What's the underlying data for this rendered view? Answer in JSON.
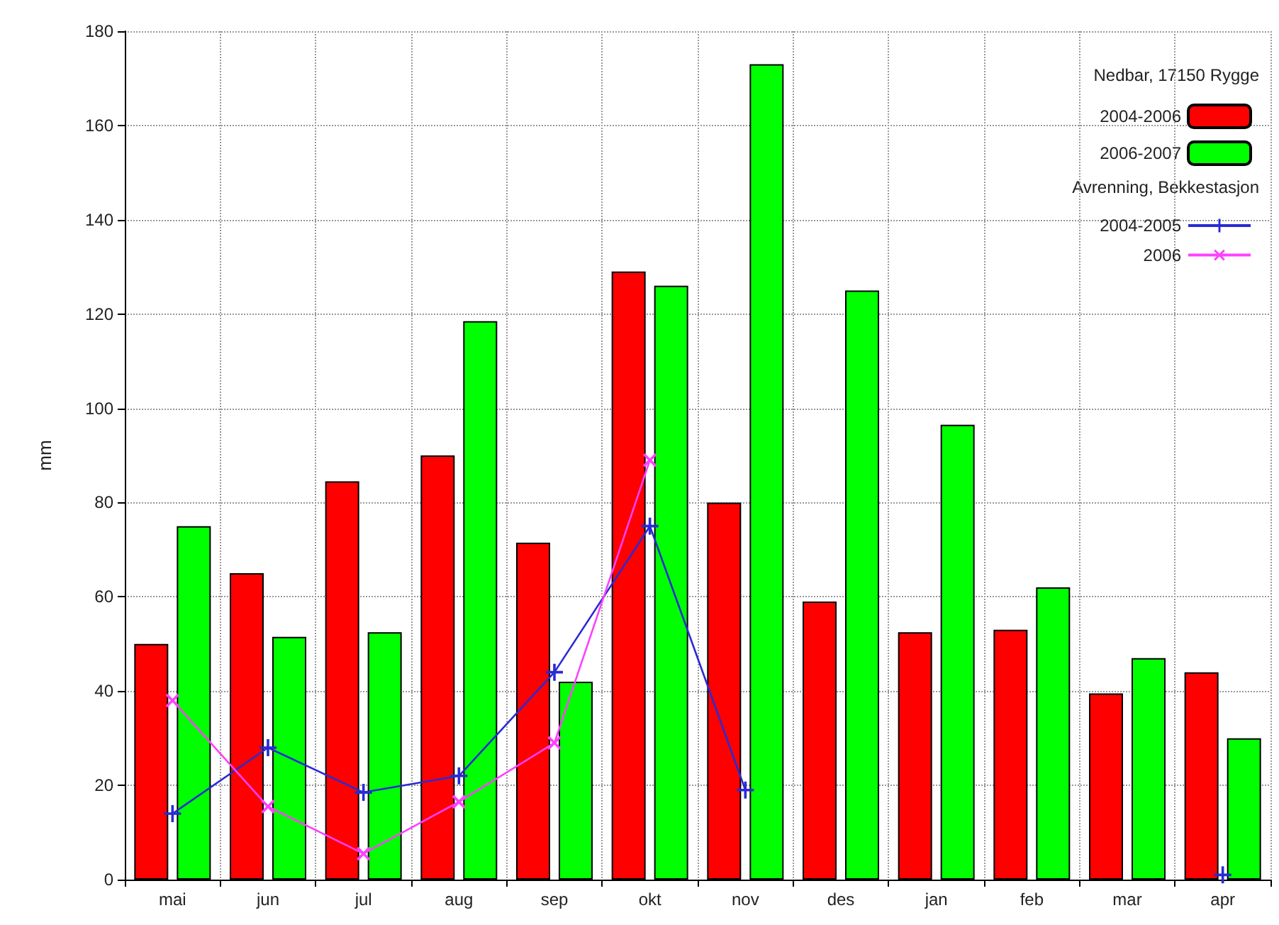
{
  "chart_data": {
    "type": "bar",
    "ylabel": "mm",
    "legend_title": "Nedbar, 17150 Rygge",
    "annotations": [
      "Avrenning, Bekkestasjon"
    ],
    "categories": [
      "mai",
      "jun",
      "jul",
      "aug",
      "sep",
      "okt",
      "nov",
      "des",
      "jan",
      "feb",
      "mar",
      "apr"
    ],
    "series": [
      {
        "name": "2004-2006",
        "color": "#ff0000",
        "values": [
          50,
          65,
          84.5,
          90,
          71.5,
          129,
          80,
          59,
          52.5,
          53,
          39.5,
          44
        ]
      },
      {
        "name": "2006-2007",
        "color": "#00ff00",
        "values": [
          75,
          51.5,
          52.5,
          118.5,
          42,
          126,
          173,
          125,
          96.5,
          62,
          47,
          30
        ]
      },
      {
        "name": "2004-2005",
        "type": "line",
        "color": "#2a2ad4",
        "values": [
          14,
          28,
          18.5,
          22,
          44,
          75,
          19,
          null,
          null,
          null,
          null,
          1
        ]
      },
      {
        "name": "2006",
        "type": "line",
        "color": "#ff40ff",
        "values": [
          38,
          15.5,
          5.5,
          16.5,
          29,
          89,
          null,
          null,
          null,
          null,
          null,
          null
        ]
      }
    ],
    "ylim": [
      0,
      180
    ],
    "yticks": [
      0,
      20,
      40,
      60,
      80,
      100,
      120,
      140,
      160,
      180
    ],
    "grid": true,
    "legend": "top right",
    "marker": "cross"
  }
}
